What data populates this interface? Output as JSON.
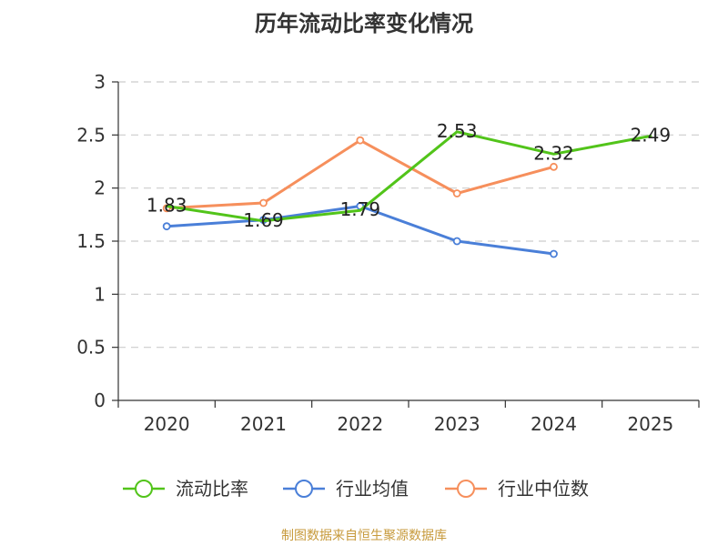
{
  "chart_data": {
    "type": "line",
    "title": "历年流动比率变化情况",
    "categories": [
      "2020",
      "2021",
      "2022",
      "2023",
      "2024",
      "2025"
    ],
    "ylim": [
      0,
      3
    ],
    "yticks": [
      "0",
      "0.5",
      "1",
      "1.5",
      "2",
      "2.5",
      "3"
    ],
    "grid": true,
    "legend_position": "bottom",
    "series": [
      {
        "name": "流动比率",
        "color": "#52c41a",
        "values": [
          1.83,
          1.69,
          1.79,
          2.53,
          2.32,
          2.49
        ],
        "labels": [
          "1.83",
          "1.69",
          "1.79",
          "2.53",
          "2.32",
          "2.49"
        ],
        "show_markers": false
      },
      {
        "name": "行业均值",
        "color": "#4a7fd8",
        "values": [
          1.64,
          1.7,
          1.83,
          1.5,
          1.38,
          null
        ],
        "show_markers": true
      },
      {
        "name": "行业中位数",
        "color": "#f68f5c",
        "values": [
          1.81,
          1.86,
          2.45,
          1.95,
          2.2,
          null
        ],
        "show_markers": true
      }
    ]
  },
  "footer": "制图数据来自恒生聚源数据库"
}
